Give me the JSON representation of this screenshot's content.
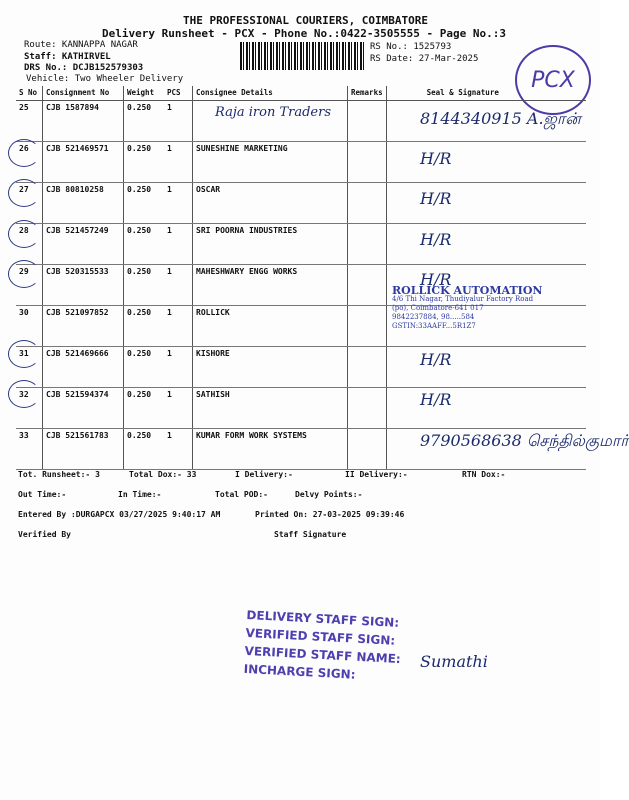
{
  "header": {
    "company": "THE PROFESSIONAL COURIERS, COIMBATORE",
    "subtitle": "Delivery Runsheet - PCX - Phone No.:0422-3505555 - Page No.:3",
    "route": "Route: KANNAPPA NAGAR",
    "staff": "Staff: KATHIRVEL",
    "drs": "DRS No.: DCJB152579303",
    "vehicle": "Vehicle: Two Wheeler Delivery",
    "rs_no": "RS No.: 1525793",
    "rs_date": "RS Date: 27-Mar-2025",
    "stamp": "PCX"
  },
  "table": {
    "columns": [
      "S No",
      "Consignment No",
      "Weight",
      "PCS",
      "Consignee Details",
      "Remarks",
      "Seal & Signature"
    ],
    "rows": [
      {
        "sno": "25",
        "cons": "CJB 1587894",
        "weight": "0.250",
        "pcs": "1",
        "consignee": "",
        "handwritten_consignee": "Raja iron Traders",
        "signature": "8144340915 A.ஜான்",
        "circled": false
      },
      {
        "sno": "26",
        "cons": "CJB 521469571",
        "weight": "0.250",
        "pcs": "1",
        "consignee": "SUNESHINE MARKETING",
        "signature": "H/R",
        "circled": true
      },
      {
        "sno": "27",
        "cons": "CJB 80810258",
        "weight": "0.250",
        "pcs": "1",
        "consignee": "OSCAR",
        "signature": "H/R",
        "circled": true
      },
      {
        "sno": "28",
        "cons": "CJB 521457249",
        "weight": "0.250",
        "pcs": "1",
        "consignee": "SRI POORNA INDUSTRIES",
        "signature": "H/R",
        "circled": true
      },
      {
        "sno": "29",
        "cons": "CJB 520315533",
        "weight": "0.250",
        "pcs": "1",
        "consignee": "MAHESHWARY ENGG WORKS",
        "signature": "H/R",
        "circled": true
      },
      {
        "sno": "30",
        "cons": "CJB 521097852",
        "weight": "0.250",
        "pcs": "1",
        "consignee": "ROLLICK",
        "signature": "",
        "circled": false
      },
      {
        "sno": "31",
        "cons": "CJB 521469666",
        "weight": "0.250",
        "pcs": "1",
        "consignee": "KISHORE",
        "signature": "H/R",
        "circled": true
      },
      {
        "sno": "32",
        "cons": "CJB 521594374",
        "weight": "0.250",
        "pcs": "1",
        "consignee": "SATHISH",
        "signature": "H/R",
        "circled": true
      },
      {
        "sno": "33",
        "cons": "CJB 521561783",
        "weight": "0.250",
        "pcs": "1",
        "consignee": "KUMAR FORM WORK SYSTEMS",
        "signature": "9790568638 செந்தில்குமார்",
        "circled": false
      }
    ]
  },
  "rollick_stamp": {
    "name": "ROLLICK AUTOMATION",
    "line1": "4/6 Thi Nagar, Thudiyalur Factory Road",
    "line2": "(po), Coimbatore-641 017",
    "line3": "9842237884, 98.....584",
    "line4": "GSTIN:33AAFF...5R1Z7"
  },
  "summary": {
    "tot_runsheet": "Tot. Runsheet:- 3",
    "total_dox": "Total Dox:-  33",
    "i_delivery": "I Delivery:-",
    "ii_delivery": "II Delivery:-",
    "rtn_dox": "RTN Dox:-",
    "out_time": "Out Time:-",
    "in_time": "In Time:-",
    "total_pod": "Total POD:-",
    "delvy_points": "Delvy Points:-",
    "entered_by": "Entered By :DURGAPCX 03/27/2025 9:40:17 AM",
    "printed_on": "Printed On: 27-03-2025 09:39:46",
    "verified_by": "Verified By",
    "staff_signature": "Staff Signature"
  },
  "sign_stamp": {
    "l1": "DELIVERY STAFF SIGN:",
    "l2": "VERIFIED STAFF SIGN:",
    "l3": "VERIFIED STAFF NAME:",
    "l4": "INCHARGE SIGN:",
    "name": "Sumathi"
  },
  "colors": {
    "stamp": "#4b3aa8",
    "ink": "#1b2a6b"
  }
}
